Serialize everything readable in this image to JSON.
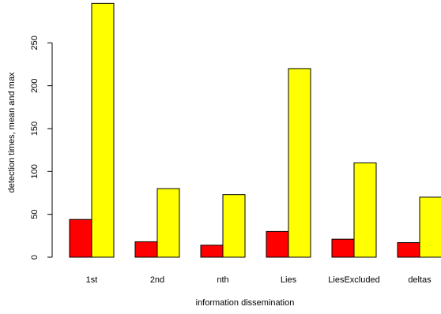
{
  "chart_data": {
    "type": "bar",
    "title": "",
    "xlabel": "information dissemination",
    "ylabel": "detection times, mean and max",
    "categories": [
      "1st",
      "2nd",
      "nth",
      "Lies",
      "LiesExcluded",
      "deltas"
    ],
    "series": [
      {
        "color": "#ff0000",
        "values": [
          44,
          18,
          14,
          30,
          21,
          17
        ]
      },
      {
        "color": "#ffff00",
        "values": [
          296,
          80,
          73,
          220,
          110,
          70
        ]
      }
    ],
    "ylim": [
      0,
      300
    ],
    "yticks": [
      0,
      50,
      100,
      150,
      200,
      250
    ],
    "grid": false,
    "legend": "none"
  }
}
